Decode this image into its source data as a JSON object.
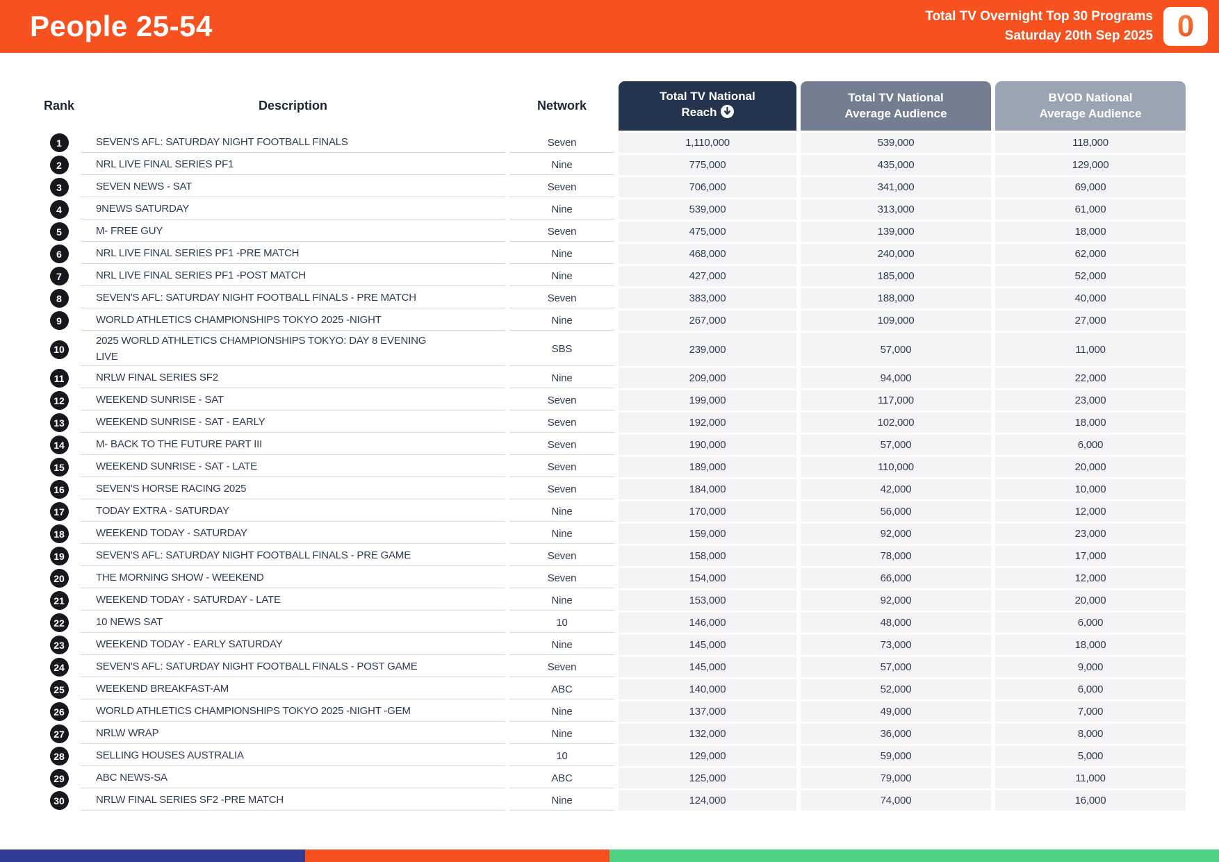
{
  "header": {
    "title": "People 25-54",
    "subtitle_line1": "Total TV Overnight Top 30 Programs",
    "subtitle_line2": "Saturday 20th Sep 2025",
    "logo_text": "0",
    "background_color": "#F6511F"
  },
  "table": {
    "columns": {
      "rank": "Rank",
      "description": "Description",
      "network": "Network",
      "reach_line1": "Total TV National",
      "reach_line2": "Reach",
      "reach_sort_icon": "circled-down-arrow",
      "avg_line1": "Total TV National",
      "avg_line2": "Average Audience",
      "bvod_line1": "BVOD National",
      "bvod_line2": "Average Audience"
    },
    "header_colors": {
      "reach": "#24344F",
      "avg": "#737E91",
      "bvod": "#9BA4B2"
    },
    "rows": [
      {
        "rank": "1",
        "description": "SEVEN'S AFL: SATURDAY NIGHT FOOTBALL FINALS",
        "network": "Seven",
        "reach": "1,110,000",
        "avg": "539,000",
        "bvod": "118,000"
      },
      {
        "rank": "2",
        "description": "NRL LIVE FINAL SERIES PF1",
        "network": "Nine",
        "reach": "775,000",
        "avg": "435,000",
        "bvod": "129,000"
      },
      {
        "rank": "3",
        "description": "SEVEN NEWS - SAT",
        "network": "Seven",
        "reach": "706,000",
        "avg": "341,000",
        "bvod": "69,000"
      },
      {
        "rank": "4",
        "description": "9NEWS SATURDAY",
        "network": "Nine",
        "reach": "539,000",
        "avg": "313,000",
        "bvod": "61,000"
      },
      {
        "rank": "5",
        "description": "M- FREE GUY",
        "network": "Seven",
        "reach": "475,000",
        "avg": "139,000",
        "bvod": "18,000"
      },
      {
        "rank": "6",
        "description": "NRL LIVE FINAL SERIES PF1 -PRE MATCH",
        "network": "Nine",
        "reach": "468,000",
        "avg": "240,000",
        "bvod": "62,000"
      },
      {
        "rank": "7",
        "description": "NRL LIVE FINAL SERIES PF1 -POST MATCH",
        "network": "Nine",
        "reach": "427,000",
        "avg": "185,000",
        "bvod": "52,000"
      },
      {
        "rank": "8",
        "description": "SEVEN'S AFL: SATURDAY NIGHT FOOTBALL FINALS - PRE MATCH",
        "network": "Seven",
        "reach": "383,000",
        "avg": "188,000",
        "bvod": "40,000"
      },
      {
        "rank": "9",
        "description": "WORLD ATHLETICS CHAMPIONSHIPS TOKYO 2025 -NIGHT",
        "network": "Nine",
        "reach": "267,000",
        "avg": "109,000",
        "bvod": "27,000"
      },
      {
        "rank": "10",
        "description": "2025 WORLD ATHLETICS CHAMPIONSHIPS TOKYO: DAY 8 EVENING LIVE",
        "network": "SBS",
        "reach": "239,000",
        "avg": "57,000",
        "bvod": "11,000"
      },
      {
        "rank": "11",
        "description": "NRLW FINAL SERIES SF2",
        "network": "Nine",
        "reach": "209,000",
        "avg": "94,000",
        "bvod": "22,000"
      },
      {
        "rank": "12",
        "description": "WEEKEND SUNRISE - SAT",
        "network": "Seven",
        "reach": "199,000",
        "avg": "117,000",
        "bvod": "23,000"
      },
      {
        "rank": "13",
        "description": "WEEKEND SUNRISE - SAT - EARLY",
        "network": "Seven",
        "reach": "192,000",
        "avg": "102,000",
        "bvod": "18,000"
      },
      {
        "rank": "14",
        "description": "M- BACK TO THE FUTURE PART III",
        "network": "Seven",
        "reach": "190,000",
        "avg": "57,000",
        "bvod": "6,000"
      },
      {
        "rank": "15",
        "description": "WEEKEND SUNRISE - SAT - LATE",
        "network": "Seven",
        "reach": "189,000",
        "avg": "110,000",
        "bvod": "20,000"
      },
      {
        "rank": "16",
        "description": "SEVEN'S HORSE RACING 2025",
        "network": "Seven",
        "reach": "184,000",
        "avg": "42,000",
        "bvod": "10,000"
      },
      {
        "rank": "17",
        "description": "TODAY EXTRA - SATURDAY",
        "network": "Nine",
        "reach": "170,000",
        "avg": "56,000",
        "bvod": "12,000"
      },
      {
        "rank": "18",
        "description": "WEEKEND TODAY - SATURDAY",
        "network": "Nine",
        "reach": "159,000",
        "avg": "92,000",
        "bvod": "23,000"
      },
      {
        "rank": "19",
        "description": "SEVEN'S AFL: SATURDAY NIGHT FOOTBALL FINALS - PRE GAME",
        "network": "Seven",
        "reach": "158,000",
        "avg": "78,000",
        "bvod": "17,000"
      },
      {
        "rank": "20",
        "description": "THE MORNING SHOW - WEEKEND",
        "network": "Seven",
        "reach": "154,000",
        "avg": "66,000",
        "bvod": "12,000"
      },
      {
        "rank": "21",
        "description": "WEEKEND TODAY - SATURDAY - LATE",
        "network": "Nine",
        "reach": "153,000",
        "avg": "92,000",
        "bvod": "20,000"
      },
      {
        "rank": "22",
        "description": "10 NEWS SAT",
        "network": "10",
        "reach": "146,000",
        "avg": "48,000",
        "bvod": "6,000"
      },
      {
        "rank": "23",
        "description": "WEEKEND TODAY - EARLY SATURDAY",
        "network": "Nine",
        "reach": "145,000",
        "avg": "73,000",
        "bvod": "18,000"
      },
      {
        "rank": "24",
        "description": "SEVEN'S AFL: SATURDAY NIGHT FOOTBALL FINALS - POST GAME",
        "network": "Seven",
        "reach": "145,000",
        "avg": "57,000",
        "bvod": "9,000"
      },
      {
        "rank": "25",
        "description": "WEEKEND BREAKFAST-AM",
        "network": "ABC",
        "reach": "140,000",
        "avg": "52,000",
        "bvod": "6,000"
      },
      {
        "rank": "26",
        "description": "WORLD ATHLETICS CHAMPIONSHIPS TOKYO 2025 -NIGHT -GEM",
        "network": "Nine",
        "reach": "137,000",
        "avg": "49,000",
        "bvod": "7,000"
      },
      {
        "rank": "27",
        "description": "NRLW WRAP",
        "network": "Nine",
        "reach": "132,000",
        "avg": "36,000",
        "bvod": "8,000"
      },
      {
        "rank": "28",
        "description": "SELLING HOUSES AUSTRALIA",
        "network": "10",
        "reach": "129,000",
        "avg": "59,000",
        "bvod": "5,000"
      },
      {
        "rank": "29",
        "description": "ABC NEWS-SA",
        "network": "ABC",
        "reach": "125,000",
        "avg": "79,000",
        "bvod": "11,000"
      },
      {
        "rank": "30",
        "description": "NRLW FINAL SERIES SF2 -PRE MATCH",
        "network": "Nine",
        "reach": "124,000",
        "avg": "74,000",
        "bvod": "16,000"
      }
    ]
  },
  "footer": {
    "segments": [
      {
        "name": "blue-segment",
        "color": "#323B93",
        "width_pct": 25
      },
      {
        "name": "orange-segment",
        "color": "#F6511F",
        "width_pct": 25
      },
      {
        "name": "green-segment",
        "color": "#4FD182",
        "width_pct": 50
      }
    ]
  }
}
